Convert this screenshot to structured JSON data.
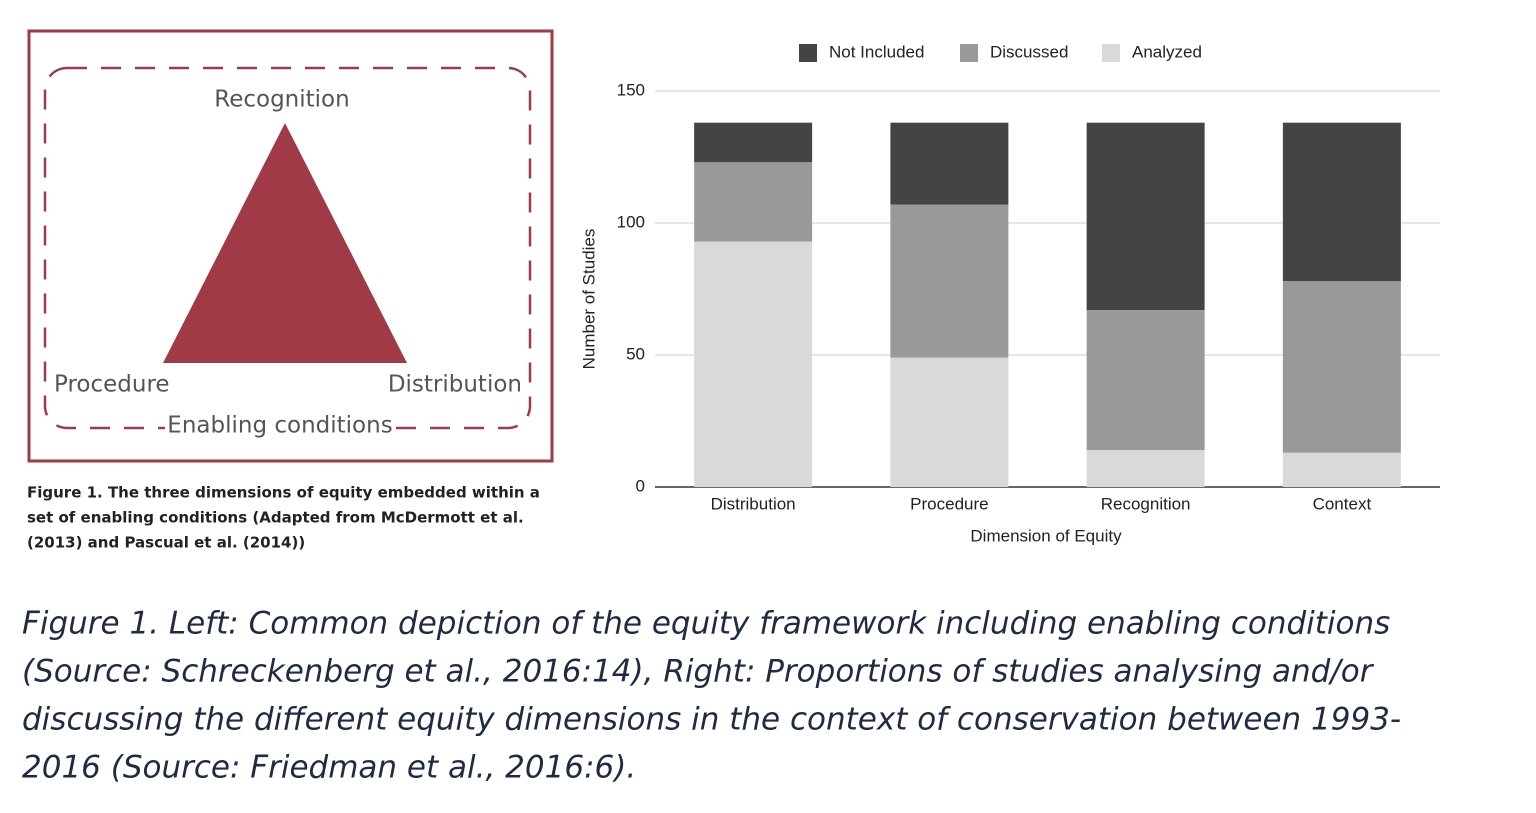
{
  "diagram": {
    "top": "Recognition",
    "left": "Procedure",
    "right": "Distribution",
    "frame": "Enabling conditions",
    "figure_caption": [
      "Figure 1. The three dimensions of equity embedded within a",
      "set of enabling conditions (Adapted from McDermott et al.",
      "(2013) and Pascual et al. (2014))"
    ]
  },
  "chart_data": {
    "type": "stacked_bar",
    "x_label": "Dimension of Equity",
    "y_label": "Number of Studies",
    "categories": [
      "Distribution",
      "Procedure",
      "Recognition",
      "Context"
    ],
    "series": [
      {
        "name": "Not Included",
        "color": "#444444",
        "values": [
          15,
          31,
          71,
          60
        ]
      },
      {
        "name": "Discussed",
        "color": "#999999",
        "values": [
          30,
          58,
          53,
          65
        ]
      },
      {
        "name": "Analyzed",
        "color": "#d9d9d9",
        "values": [
          93,
          49,
          14,
          13
        ]
      }
    ],
    "ylim": [
      0,
      150
    ],
    "yticks": [
      0,
      50,
      100,
      150
    ],
    "grid": true,
    "legend": "top"
  },
  "caption": {
    "lines": [
      "Figure 1. Left: Common depiction of the equity framework including enabling conditions",
      "(Source: Schreckenberg et al., 2016:14), Right: Proportions of studies analysing and/or",
      "discussing the different equity dimensions in the context of conservation between 1993-",
      "2016 (Source: Friedman et al., 2016:6)."
    ]
  }
}
